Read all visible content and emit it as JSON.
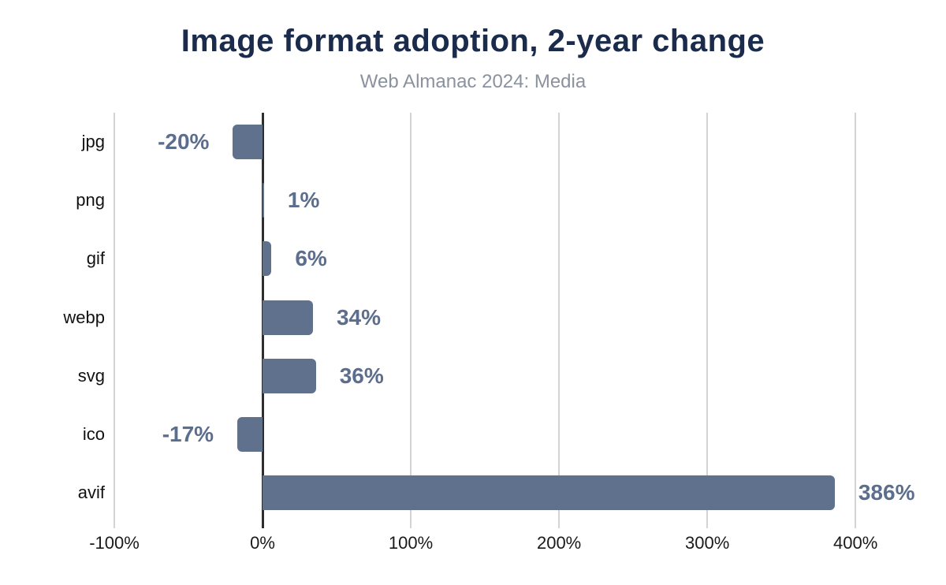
{
  "chart_data": {
    "type": "bar",
    "orientation": "horizontal",
    "title": "Image format adoption, 2-year change",
    "subtitle": "Web Almanac 2024: Media",
    "categories": [
      "jpg",
      "png",
      "gif",
      "webp",
      "svg",
      "ico",
      "avif"
    ],
    "values": [
      -20,
      1,
      6,
      34,
      36,
      -17,
      386
    ],
    "value_labels": [
      "-20%",
      "1%",
      "6%",
      "34%",
      "36%",
      "-17%",
      "386%"
    ],
    "xlabel": "",
    "ylabel": "",
    "x_ticks": [
      "-100%",
      "0%",
      "100%",
      "200%",
      "300%",
      "400%"
    ],
    "x_tick_values": [
      -100,
      0,
      100,
      200,
      300,
      400
    ],
    "xlim": [
      -100,
      435
    ],
    "grid": true,
    "legend": "none",
    "colors": {
      "bar": "#5f718c",
      "value_label": "#5c6e8e",
      "title": "#1b2b4b",
      "subtitle": "#8b929f",
      "gridline": "#d4d4d4",
      "zero_line": "#2e2e2e",
      "category_label": "#111111",
      "tick_label": "#1a1a1a",
      "background": "#ffffff"
    }
  }
}
